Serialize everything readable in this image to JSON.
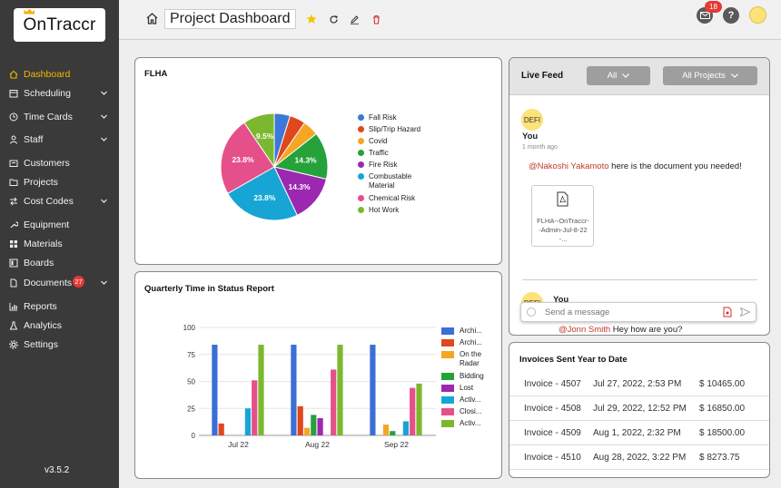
{
  "app": {
    "logo_text": "OnTraccr",
    "version": "v3.5.2"
  },
  "sidebar": {
    "items": [
      {
        "label": "Dashboard",
        "icon": "home-icon",
        "active": true
      },
      {
        "label": "Scheduling",
        "icon": "calendar-icon",
        "has_chevron": true
      },
      {
        "label": "Time Cards",
        "icon": "clock-icon",
        "has_chevron": true
      },
      {
        "label": "Staff",
        "icon": "person-icon",
        "has_chevron": true
      },
      {
        "label": "Customers",
        "icon": "id-card-icon"
      },
      {
        "label": "Projects",
        "icon": "folder-icon"
      },
      {
        "label": "Cost Codes",
        "icon": "swap-icon",
        "has_chevron": true
      },
      {
        "label": "Equipment",
        "icon": "wrench-icon"
      },
      {
        "label": "Materials",
        "icon": "grid-icon"
      },
      {
        "label": "Boards",
        "icon": "board-icon"
      },
      {
        "label": "Documents",
        "icon": "document-icon",
        "badge": "27",
        "has_chevron": true
      },
      {
        "label": "Reports",
        "icon": "chart-icon"
      },
      {
        "label": "Analytics",
        "icon": "flask-icon"
      },
      {
        "label": "Settings",
        "icon": "gear-icon"
      }
    ]
  },
  "header": {
    "title": "Project Dashboard",
    "notification_count": "18"
  },
  "flha": {
    "title": "FLHA",
    "chart_data": {
      "type": "pie",
      "categories": [
        "Fall Risk",
        "Slip/Trip Hazard",
        "Covid",
        "Traffic",
        "Fire Risk",
        "Combustable Material",
        "Chemical Risk",
        "Hot Work"
      ],
      "values": [
        4.8,
        4.8,
        4.8,
        14.3,
        14.3,
        23.8,
        23.8,
        9.5
      ],
      "labels": [
        "",
        "",
        "",
        "14.3%",
        "14.3%",
        "23.8%",
        "23.8%",
        "9.5%"
      ],
      "colors": [
        "#3b78d8",
        "#e0471d",
        "#f5a623",
        "#25a23a",
        "#9c27b0",
        "#16a5d4",
        "#e5508a",
        "#7cb82f"
      ],
      "legend": "right"
    }
  },
  "quarterly": {
    "title": "Quarterly Time in Status Report",
    "chart_data": {
      "type": "bar",
      "categories": [
        "Jul 22",
        "Aug 22",
        "Sep 22"
      ],
      "ylim": [
        0,
        100
      ],
      "yticks": [
        "0",
        "25",
        "50",
        "75",
        "100"
      ],
      "legend": "right",
      "series": [
        {
          "name": "Archi...",
          "color": "#3b6fd6",
          "values": [
            84,
            84,
            84
          ]
        },
        {
          "name": "Archi...",
          "color": "#e0471d",
          "values": [
            11,
            27,
            0
          ]
        },
        {
          "name": "On the Radar",
          "color": "#f5a623",
          "values": [
            0,
            7,
            10
          ]
        },
        {
          "name": "Bidding",
          "color": "#25a23a",
          "values": [
            0,
            19,
            4
          ]
        },
        {
          "name": "Lost",
          "color": "#9c27b0",
          "values": [
            0,
            16,
            0
          ]
        },
        {
          "name": "Activ...",
          "color": "#16a5d4",
          "values": [
            25,
            0,
            13
          ]
        },
        {
          "name": "Closi...",
          "color": "#e5508a",
          "values": [
            51,
            61,
            44
          ]
        },
        {
          "name": "Activ...",
          "color": "#7cb82f",
          "values": [
            84,
            84,
            48
          ]
        }
      ]
    }
  },
  "live_feed": {
    "title": "Live Feed",
    "filter_all": "All",
    "filter_projects": "All Projects",
    "post": {
      "avatar_text": "DEFI",
      "author": "You",
      "time": "1 month ago",
      "mention": "@Nakoshi Yakamoto",
      "message": " here is the document you needed!",
      "attachment": "FLHA--OnTraccr--Admin-Jul-8-22-..."
    },
    "post2": {
      "avatar_text": "DEFI",
      "author": "You",
      "mention": "@Jonn Smith",
      "message": " Hey how are you?"
    },
    "input_placeholder": "Send a message"
  },
  "invoices": {
    "title": "Invoices Sent Year to Date",
    "rows": [
      {
        "name": "Invoice - 4507",
        "date": "Jul 27, 2022, 2:53 PM",
        "amount": "$ 10465.00"
      },
      {
        "name": "Invoice - 4508",
        "date": "Jul 29, 2022, 12:52 PM",
        "amount": "$ 16850.00"
      },
      {
        "name": "Invoice - 4509",
        "date": "Aug 1, 2022, 2:32 PM",
        "amount": "$ 18500.00"
      },
      {
        "name": "Invoice - 4510",
        "date": "Aug 28, 2022, 3:22 PM",
        "amount": "$ 8273.75"
      }
    ]
  }
}
